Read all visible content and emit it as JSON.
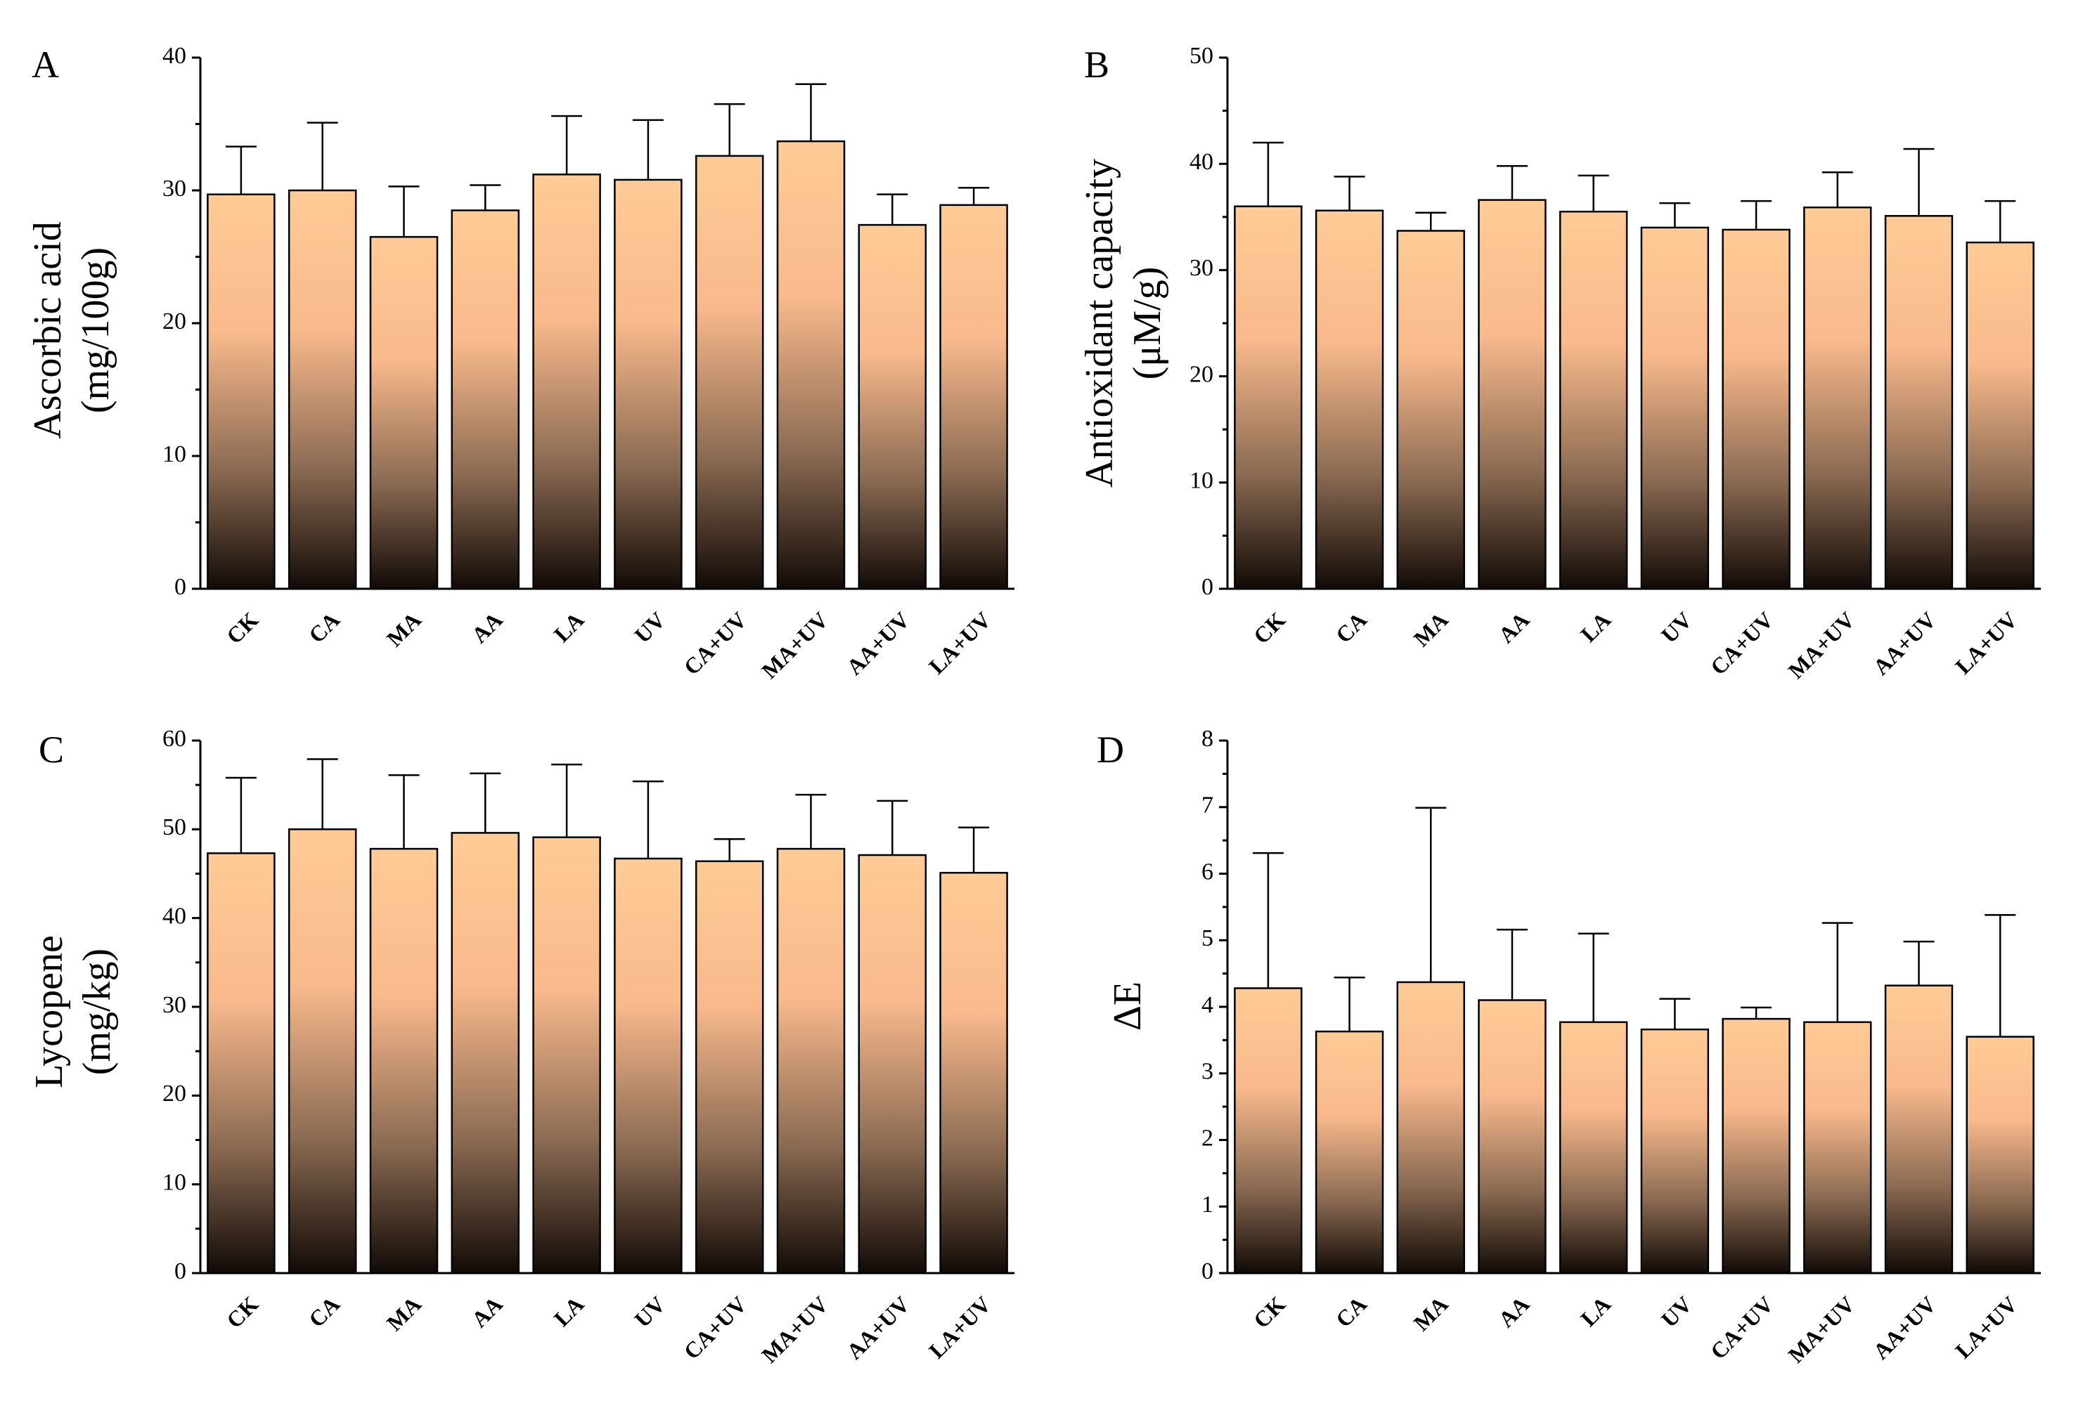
{
  "chart_data": [
    {
      "type": "bar",
      "panel": "A",
      "ylabel": [
        "Ascorbic acid",
        "(mg/100g)"
      ],
      "categories": [
        "CK",
        "CA",
        "MA",
        "AA",
        "LA",
        "UV",
        "CA+UV",
        "MA+UV",
        "AA+UV",
        "LA+UV"
      ],
      "values": [
        29.7,
        30.0,
        26.5,
        28.5,
        31.2,
        30.8,
        32.6,
        33.7,
        27.4,
        28.9
      ],
      "errors": [
        3.6,
        5.1,
        3.8,
        1.9,
        4.4,
        4.5,
        3.9,
        4.3,
        2.3,
        1.3
      ],
      "ylim": [
        0,
        40
      ],
      "yticks": [
        0,
        10,
        20,
        30,
        40
      ],
      "yticklabels": [
        "0",
        "10",
        "20",
        "30",
        "40"
      ]
    },
    {
      "type": "bar",
      "panel": "B",
      "ylabel": [
        "Antioxidant capacity",
        "(μM/g)"
      ],
      "categories": [
        "CK",
        "CA",
        "MA",
        "AA",
        "LA",
        "UV",
        "CA+UV",
        "MA+UV",
        "AA+UV",
        "LA+UV"
      ],
      "values": [
        36.0,
        35.6,
        33.7,
        36.6,
        35.5,
        34.0,
        33.8,
        35.9,
        35.1,
        32.6
      ],
      "errors": [
        6.0,
        3.2,
        1.7,
        3.2,
        3.4,
        2.3,
        2.7,
        3.3,
        6.3,
        3.9
      ],
      "ylim": [
        0,
        50
      ],
      "yticks": [
        0,
        10,
        20,
        30,
        40,
        50
      ],
      "yticklabels": [
        "0",
        "10",
        "20",
        "30",
        "40",
        "50"
      ]
    },
    {
      "type": "bar",
      "panel": "C",
      "ylabel": [
        "Lycopene",
        "(mg/kg)"
      ],
      "categories": [
        "CK",
        "CA",
        "MA",
        "AA",
        "LA",
        "UV",
        "CA+UV",
        "MA+UV",
        "AA+UV",
        "LA+UV"
      ],
      "values": [
        47.3,
        50.0,
        47.8,
        49.6,
        49.1,
        46.7,
        46.4,
        47.8,
        47.1,
        45.1
      ],
      "errors": [
        8.5,
        7.9,
        8.3,
        6.7,
        8.2,
        8.7,
        2.5,
        6.1,
        6.1,
        5.1
      ],
      "ylim": [
        0,
        60
      ],
      "yticks": [
        0,
        10,
        20,
        30,
        40,
        50,
        60
      ],
      "yticklabels": [
        "0",
        "10",
        "20",
        "30",
        "40",
        "50",
        "60"
      ]
    },
    {
      "type": "bar",
      "panel": "D",
      "ylabel": [
        "ΔE"
      ],
      "categories": [
        "CK",
        "CA",
        "MA",
        "AA",
        "LA",
        "UV",
        "CA+UV",
        "MA+UV",
        "AA+UV",
        "LA+UV"
      ],
      "values": [
        4.28,
        3.63,
        4.37,
        4.1,
        3.77,
        3.66,
        3.82,
        3.77,
        4.32,
        3.55
      ],
      "errors": [
        2.03,
        0.81,
        2.62,
        1.06,
        1.33,
        0.46,
        0.17,
        1.49,
        0.66,
        1.83
      ],
      "ylim": [
        0,
        8
      ],
      "yticks": [
        0,
        1,
        2,
        3,
        4,
        5,
        6,
        7,
        8
      ],
      "yticklabels": [
        "0",
        "1",
        "2",
        "3",
        "4",
        "5",
        "6",
        "7",
        "8"
      ]
    }
  ],
  "colors": {
    "bar_top": "#ffcb96",
    "bar_mid": "#f9b98c",
    "bar_lower": "#8a6a52",
    "bar_bottom": "#120a06",
    "axis": "#000000"
  }
}
